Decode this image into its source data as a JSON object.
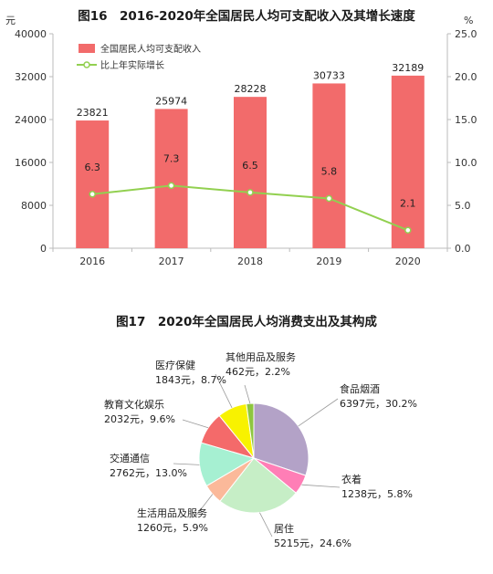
{
  "figure16": {
    "title": "图16　2016-2020年全国居民人均可支配收入及其增长速度",
    "left_unit": "元",
    "right_unit": "%",
    "legend": {
      "bar": "全国居民人均可支配收入",
      "line": "比上年实际增长"
    }
  },
  "figure17": {
    "title": "图17　2020年全国居民人均消费支出及其构成"
  },
  "chart_data": [
    {
      "type": "bar+line",
      "title": "图16　2016-2020年全国居民人均可支配收入及其增长速度",
      "categories": [
        "2016",
        "2017",
        "2018",
        "2019",
        "2020"
      ],
      "series": [
        {
          "name": "全国居民人均可支配收入",
          "type": "bar",
          "axis": "left",
          "values": [
            23821,
            25974,
            28228,
            30733,
            32189
          ],
          "labels": [
            "23821",
            "25974",
            "28228",
            "30733",
            "32189"
          ]
        },
        {
          "name": "比上年实际增长",
          "type": "line",
          "axis": "right",
          "values": [
            6.3,
            7.3,
            6.5,
            5.8,
            2.1
          ],
          "labels": [
            "6.3",
            "7.3",
            "6.5",
            "5.8",
            "2.1"
          ]
        }
      ],
      "ylim_left": [
        0,
        40000
      ],
      "yticks_left": [
        "0",
        "8000",
        "16000",
        "24000",
        "32000",
        "40000"
      ],
      "ylim_right": [
        0,
        25
      ],
      "yticks_right": [
        "0.0",
        "5.0",
        "10.0",
        "15.0",
        "20.0",
        "25.0"
      ],
      "ylabel_left": "元",
      "ylabel_right": "%",
      "grid": false,
      "legend_position": "top-left",
      "colors": {
        "bar": "#f26b6b",
        "line": "#92d050",
        "axis": "#bbbbbb"
      }
    },
    {
      "type": "pie",
      "title": "图17　2020年全国居民人均消费支出及其构成",
      "slices": [
        {
          "name": "食品烟酒",
          "value": 6397,
          "percent": 30.2,
          "label": "6397元，30.2%",
          "color": "#b3a2c7"
        },
        {
          "name": "衣着",
          "value": 1238,
          "percent": 5.8,
          "label": "1238元，5.8%",
          "color": "#ff7eb6"
        },
        {
          "name": "居住",
          "value": 5215,
          "percent": 24.6,
          "label": "5215元，24.6%",
          "color": "#c6eec6"
        },
        {
          "name": "生活用品及服务",
          "value": 1260,
          "percent": 5.9,
          "label": "1260元，5.9%",
          "color": "#fbb99a"
        },
        {
          "name": "交通通信",
          "value": 2762,
          "percent": 13.0,
          "label": "2762元，13.0%",
          "color": "#a6f0d2"
        },
        {
          "name": "教育文化娱乐",
          "value": 2032,
          "percent": 9.6,
          "label": "2032元，9.6%",
          "color": "#f46a6a"
        },
        {
          "name": "医疗保健",
          "value": 1843,
          "percent": 8.7,
          "label": "1843元，8.7%",
          "color": "#f8f200"
        },
        {
          "name": "其他用品及服务",
          "value": 462,
          "percent": 2.2,
          "label": "462元，2.2%",
          "color": "#8ec63f"
        }
      ]
    }
  ]
}
